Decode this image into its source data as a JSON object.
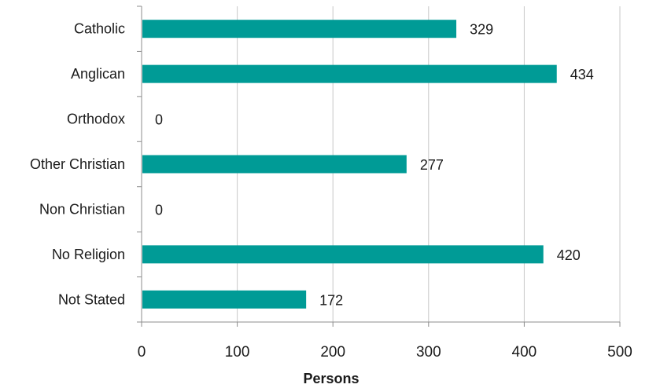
{
  "chart_data": {
    "type": "bar",
    "orientation": "horizontal",
    "categories": [
      "Catholic",
      "Anglican",
      "Orthodox",
      "Other Christian",
      "Non Christian",
      "No Religion",
      "Not Stated"
    ],
    "values": [
      329,
      434,
      0,
      277,
      0,
      420,
      172
    ],
    "xlabel": "Persons",
    "ylabel": "",
    "xlim": [
      0,
      500
    ],
    "xticks": [
      0,
      100,
      200,
      300,
      400,
      500
    ],
    "grid": "vertical",
    "legend": "none",
    "bar_color": "#009b96"
  }
}
